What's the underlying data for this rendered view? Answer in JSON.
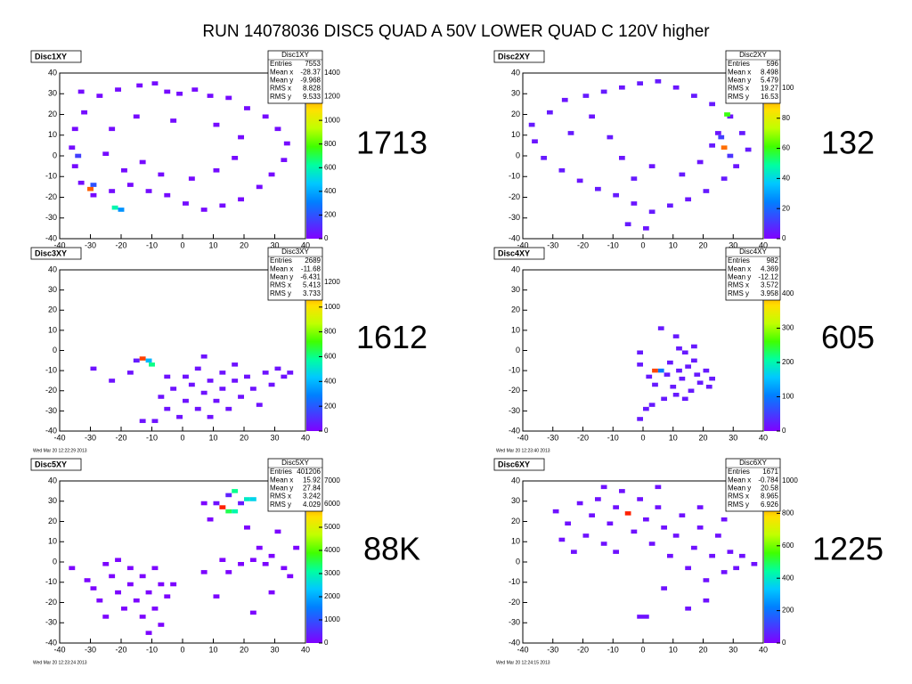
{
  "title": "RUN 14078036 DISC5 QUAD A 50V LOWER QUAD C 120V higher",
  "chart_data": [
    {
      "type": "heatmap2d",
      "title": "Disc1XY",
      "stats_title": "Disc1XY",
      "stats": [
        {
          "label": "Entries",
          "value": 7553
        },
        {
          "label": "Mean x",
          "value": -28.37
        },
        {
          "label": "Mean y",
          "value": -9.968
        },
        {
          "label": "RMS x",
          "value": 8.828
        },
        {
          "label": "RMS y",
          "value": 9.533
        }
      ],
      "annotation": "1713",
      "palette": [
        "#8000ff",
        "#4040ff",
        "#0080ff",
        "#00c8ff",
        "#00ffa0",
        "#40ff00",
        "#c0ff00",
        "#ffe000",
        "#ff8000",
        "#ff2000"
      ],
      "xlim": [
        -40,
        40
      ],
      "ylim": [
        -40,
        40
      ],
      "zlim": [
        0,
        1400
      ],
      "xticks": [
        -40,
        -30,
        -20,
        -10,
        0,
        10,
        20,
        30,
        40
      ],
      "yticks": [
        -40,
        -30,
        -20,
        -10,
        0,
        10,
        20,
        30,
        40
      ],
      "zticks": [
        0,
        200,
        400,
        600,
        800,
        1000,
        1200,
        1400
      ],
      "x": [
        -34,
        -28,
        -22,
        -15,
        -10,
        -6,
        -2,
        3,
        8,
        14,
        20,
        26,
        30,
        33,
        32,
        28,
        24,
        18,
        12,
        6,
        0,
        -6,
        -12,
        -18,
        -24,
        -30,
        -34,
        -36,
        -37,
        -36,
        -33,
        -26,
        -20,
        -14,
        -8,
        2,
        10,
        16,
        18,
        10,
        -4,
        -16,
        -24,
        -31,
        -23,
        -21,
        -30,
        -35
      ],
      "y": [
        30,
        28,
        31,
        33,
        34,
        30,
        29,
        31,
        28,
        27,
        22,
        18,
        12,
        5,
        -3,
        -10,
        -16,
        -22,
        -25,
        -27,
        -24,
        -20,
        -18,
        -15,
        -18,
        -20,
        -14,
        -6,
        3,
        12,
        20,
        0,
        -8,
        -4,
        -10,
        -12,
        -8,
        -2,
        8,
        14,
        16,
        18,
        12,
        -17,
        -26,
        -27,
        -15,
        -1
      ],
      "values": [
        30,
        25,
        30,
        25,
        30,
        25,
        30,
        25,
        30,
        25,
        30,
        25,
        30,
        25,
        30,
        25,
        30,
        25,
        30,
        25,
        30,
        25,
        30,
        25,
        30,
        25,
        30,
        25,
        30,
        25,
        30,
        25,
        30,
        25,
        30,
        25,
        30,
        25,
        30,
        25,
        30,
        25,
        30,
        1300,
        600,
        350,
        200,
        150
      ]
    },
    {
      "type": "heatmap2d",
      "title": "Disc2XY",
      "stats_title": "Disc2XY",
      "stats": [
        {
          "label": "Entries",
          "value": 596
        },
        {
          "label": "Mean x",
          "value": 8.498
        },
        {
          "label": "Mean y",
          "value": 5.479
        },
        {
          "label": "RMS x",
          "value": 19.27
        },
        {
          "label": "RMS y",
          "value": 16.53
        }
      ],
      "annotation": "132",
      "palette": [
        "#8000ff",
        "#4040ff",
        "#0080ff",
        "#00c8ff",
        "#00ffa0",
        "#40ff00",
        "#c0ff00",
        "#ffe000",
        "#ff8000",
        "#ff2000"
      ],
      "xlim": [
        -40,
        40
      ],
      "ylim": [
        -40,
        40
      ],
      "zlim": [
        0,
        110
      ],
      "xticks": [
        -40,
        -30,
        -20,
        -10,
        0,
        10,
        20,
        30,
        40
      ],
      "yticks": [
        -40,
        -30,
        -20,
        -10,
        0,
        10,
        20,
        30,
        40
      ],
      "zticks": [
        0,
        20,
        40,
        60,
        80,
        100
      ],
      "x": [
        -38,
        -32,
        -27,
        -20,
        -14,
        -8,
        -2,
        4,
        10,
        16,
        22,
        28,
        32,
        34,
        30,
        26,
        20,
        14,
        8,
        2,
        -4,
        -10,
        -16,
        -22,
        -28,
        -34,
        -37,
        -25,
        -18,
        -12,
        -8,
        -4,
        2,
        12,
        18,
        22,
        24,
        -6,
        0,
        26,
        27,
        25,
        28
      ],
      "y": [
        14,
        20,
        26,
        28,
        30,
        32,
        34,
        35,
        32,
        28,
        24,
        18,
        10,
        2,
        -6,
        -12,
        -18,
        -22,
        -25,
        -28,
        -24,
        -20,
        -17,
        -13,
        -8,
        -2,
        6,
        10,
        18,
        8,
        -2,
        -12,
        -6,
        -10,
        -4,
        4,
        10,
        -34,
        -36,
        3,
        19,
        8,
        -1
      ],
      "values": [
        5,
        5,
        4,
        5,
        5,
        4,
        5,
        5,
        4,
        5,
        5,
        4,
        5,
        5,
        4,
        5,
        5,
        4,
        5,
        5,
        4,
        5,
        5,
        4,
        5,
        5,
        4,
        5,
        4,
        5,
        4,
        5,
        4,
        5,
        4,
        5,
        4,
        5,
        4,
        100,
        60,
        12,
        10
      ]
    },
    {
      "type": "heatmap2d",
      "title": "Disc3XY",
      "stats_title": "Disc3XY",
      "stats": [
        {
          "label": "Entries",
          "value": 2689
        },
        {
          "label": "Mean x",
          "value": -11.68
        },
        {
          "label": "Mean y",
          "value": -6.431
        },
        {
          "label": "RMS x",
          "value": 5.413
        },
        {
          "label": "RMS y",
          "value": 3.733
        }
      ],
      "annotation": "1612",
      "date": "Wed Mar 20 12:22:29 2013",
      "palette": [
        "#8000ff",
        "#4040ff",
        "#0080ff",
        "#00c8ff",
        "#00ffa0",
        "#40ff00",
        "#c0ff00",
        "#ffe000",
        "#ff8000",
        "#ff2000"
      ],
      "xlim": [
        -40,
        40
      ],
      "ylim": [
        -40,
        40
      ],
      "zlim": [
        0,
        1300
      ],
      "xticks": [
        -40,
        -30,
        -20,
        -10,
        0,
        10,
        20,
        30,
        40
      ],
      "yticks": [
        -40,
        -30,
        -20,
        -10,
        0,
        10,
        20,
        30,
        40
      ],
      "zticks": [
        0,
        200,
        400,
        600,
        800,
        1000,
        1200
      ],
      "x": [
        -30,
        -24,
        -18,
        -14,
        -12,
        -11,
        -16,
        -8,
        -6,
        -4,
        -2,
        0,
        0,
        2,
        4,
        4,
        6,
        8,
        8,
        10,
        12,
        12,
        14,
        16,
        16,
        18,
        20,
        22,
        24,
        26,
        28,
        30,
        32,
        34,
        -10,
        -14,
        6,
        -6
      ],
      "y": [
        -10,
        -16,
        -12,
        -5,
        -6,
        -8,
        -6,
        -24,
        -30,
        -20,
        -34,
        -14,
        -26,
        -18,
        -30,
        -10,
        -22,
        -16,
        -34,
        -26,
        -12,
        -20,
        -30,
        -8,
        -16,
        -24,
        -14,
        -20,
        -28,
        -12,
        -18,
        -10,
        -14,
        -12,
        -36,
        -36,
        -4,
        -14
      ],
      "values": [
        40,
        40,
        40,
        1250,
        400,
        600,
        60,
        40,
        40,
        40,
        40,
        40,
        40,
        40,
        40,
        40,
        40,
        40,
        40,
        40,
        40,
        40,
        40,
        40,
        40,
        40,
        40,
        40,
        40,
        40,
        40,
        40,
        40,
        40,
        40,
        40,
        40,
        40
      ]
    },
    {
      "type": "heatmap2d",
      "title": "Disc4XY",
      "stats_title": "Disc4XY",
      "stats": [
        {
          "label": "Entries",
          "value": 982
        },
        {
          "label": "Mean x",
          "value": 4.369
        },
        {
          "label": "Mean y",
          "value": -12.12
        },
        {
          "label": "RMS x",
          "value": 3.572
        },
        {
          "label": "RMS y",
          "value": 3.958
        }
      ],
      "annotation": "605",
      "date": "Wed Mar 20 12:23:40 2013",
      "palette": [
        "#8000ff",
        "#4040ff",
        "#0080ff",
        "#00c8ff",
        "#00ffa0",
        "#40ff00",
        "#c0ff00",
        "#ffe000",
        "#ff8000",
        "#ff2000"
      ],
      "xlim": [
        -40,
        40
      ],
      "ylim": [
        -40,
        40
      ],
      "zlim": [
        0,
        470
      ],
      "xticks": [
        -40,
        -30,
        -20,
        -10,
        0,
        10,
        20,
        30,
        40
      ],
      "yticks": [
        -40,
        -30,
        -20,
        -10,
        0,
        10,
        20,
        30,
        40
      ],
      "zticks": [
        0,
        100,
        200,
        300,
        400
      ],
      "x": [
        5,
        10,
        13,
        16,
        -2,
        -2,
        1,
        3,
        5,
        7,
        8,
        9,
        11,
        12,
        14,
        15,
        17,
        18,
        20,
        21,
        22,
        6,
        10,
        -2,
        0,
        2,
        3,
        13,
        16,
        11
      ],
      "y": [
        10,
        6,
        -2,
        -6,
        -2,
        -8,
        -14,
        -11,
        -11,
        -13,
        -7,
        -19,
        -11,
        -15,
        -9,
        -21,
        -13,
        -17,
        -11,
        -19,
        -15,
        -25,
        -23,
        -35,
        -30,
        -28,
        -18,
        -25,
        1,
        0
      ],
      "values": [
        20,
        20,
        20,
        20,
        20,
        20,
        20,
        450,
        100,
        20,
        20,
        20,
        20,
        20,
        20,
        20,
        20,
        20,
        20,
        20,
        20,
        20,
        20,
        20,
        20,
        20,
        20,
        20,
        20,
        20
      ]
    },
    {
      "type": "heatmap2d",
      "title": "Disc5XY",
      "stats_title": "Disc5XY",
      "stats": [
        {
          "label": "Entries",
          "value": 401206
        },
        {
          "label": "Mean x",
          "value": 15.92
        },
        {
          "label": "Mean y",
          "value": 27.84
        },
        {
          "label": "RMS x",
          "value": 3.242
        },
        {
          "label": "RMS y",
          "value": 4.029
        }
      ],
      "annotation": "88K",
      "date": "Wed Mar 20 12:23:24 2013",
      "palette": [
        "#8000ff",
        "#4040ff",
        "#0080ff",
        "#00c8ff",
        "#00ffa0",
        "#40ff00",
        "#c0ff00",
        "#ffe000",
        "#ff8000",
        "#ff2000"
      ],
      "xlim": [
        -40,
        40
      ],
      "ylim": [
        -40,
        40
      ],
      "zlim": [
        0,
        7000
      ],
      "xticks": [
        -40,
        -30,
        -20,
        -10,
        0,
        10,
        20,
        30,
        40
      ],
      "yticks": [
        -40,
        -30,
        -20,
        -10,
        0,
        10,
        20,
        30,
        40
      ],
      "zticks": [
        0,
        1000,
        2000,
        3000,
        4000,
        5000,
        6000,
        7000
      ],
      "x": [
        -37,
        -32,
        -30,
        -28,
        -26,
        -24,
        -22,
        -20,
        -18,
        -18,
        -16,
        -14,
        -14,
        -12,
        -10,
        -10,
        -8,
        -8,
        -6,
        -22,
        -26,
        -12,
        -4,
        6,
        8,
        12,
        14,
        16,
        16,
        20,
        22,
        14,
        18,
        10,
        20,
        24,
        26,
        28,
        30,
        32,
        34,
        22,
        18,
        14,
        28,
        22,
        6,
        10,
        36,
        12
      ],
      "y": [
        -4,
        -10,
        -14,
        -20,
        -2,
        -8,
        -16,
        -24,
        -4,
        -12,
        -20,
        -8,
        -28,
        -16,
        -24,
        -4,
        -12,
        -32,
        -18,
        0,
        -28,
        -36,
        -12,
        28,
        20,
        26,
        24,
        24,
        34,
        30,
        30,
        32,
        28,
        28,
        16,
        6,
        -2,
        2,
        14,
        -4,
        -8,
        0,
        -2,
        -6,
        -16,
        -26,
        -6,
        -18,
        6,
        0
      ],
      "values": [
        50,
        50,
        50,
        50,
        50,
        50,
        50,
        50,
        50,
        50,
        50,
        50,
        50,
        50,
        50,
        50,
        50,
        50,
        50,
        50,
        50,
        50,
        50,
        50,
        50,
        7000,
        3500,
        3000,
        3200,
        2800,
        2500,
        400,
        300,
        200,
        50,
        50,
        50,
        50,
        50,
        50,
        50,
        50,
        50,
        50,
        50,
        50,
        50,
        50,
        50,
        50
      ]
    },
    {
      "type": "heatmap2d",
      "title": "Disc6XY",
      "stats_title": "Disc6XY",
      "stats": [
        {
          "label": "Entries",
          "value": 1671
        },
        {
          "label": "Mean x",
          "value": -0.784
        },
        {
          "label": "Mean y",
          "value": 20.58
        },
        {
          "label": "RMS x",
          "value": 8.965
        },
        {
          "label": "RMS y",
          "value": 6.926
        }
      ],
      "annotation": "1225",
      "date": "Wed Mar 20 12:24:15 2013",
      "palette": [
        "#8000ff",
        "#4040ff",
        "#0080ff",
        "#00c8ff",
        "#00ffa0",
        "#40ff00",
        "#c0ff00",
        "#ffe000",
        "#ff8000",
        "#ff2000"
      ],
      "xlim": [
        -40,
        40
      ],
      "ylim": [
        -40,
        40
      ],
      "zlim": [
        0,
        1000
      ],
      "xticks": [
        -40,
        -30,
        -20,
        -10,
        0,
        10,
        20,
        30,
        40
      ],
      "yticks": [
        -40,
        -30,
        -20,
        -10,
        0,
        10,
        20,
        30,
        40
      ],
      "zticks": [
        0,
        200,
        400,
        600,
        800,
        1000
      ],
      "x": [
        -30,
        -26,
        -22,
        -20,
        -18,
        -16,
        -14,
        -12,
        -10,
        -8,
        -6,
        -4,
        -2,
        0,
        2,
        4,
        6,
        8,
        10,
        12,
        14,
        16,
        18,
        20,
        22,
        24,
        26,
        28,
        30,
        32,
        36,
        -2,
        0,
        14,
        20,
        6,
        -10,
        -24,
        -28,
        4,
        18,
        26,
        -14
      ],
      "y": [
        24,
        18,
        28,
        12,
        22,
        30,
        8,
        18,
        26,
        34,
        23,
        14,
        30,
        20,
        8,
        26,
        16,
        2,
        12,
        22,
        -4,
        6,
        16,
        -10,
        2,
        12,
        -6,
        4,
        -4,
        2,
        -2,
        -28,
        -28,
        -24,
        -20,
        -14,
        4,
        4,
        10,
        36,
        26,
        20,
        36
      ],
      "values": [
        30,
        30,
        30,
        30,
        30,
        30,
        30,
        30,
        30,
        30,
        1000,
        30,
        30,
        30,
        30,
        30,
        30,
        30,
        30,
        30,
        30,
        30,
        30,
        30,
        30,
        30,
        30,
        30,
        30,
        30,
        30,
        30,
        30,
        30,
        30,
        30,
        30,
        30,
        30,
        30,
        30,
        30,
        30
      ]
    }
  ]
}
